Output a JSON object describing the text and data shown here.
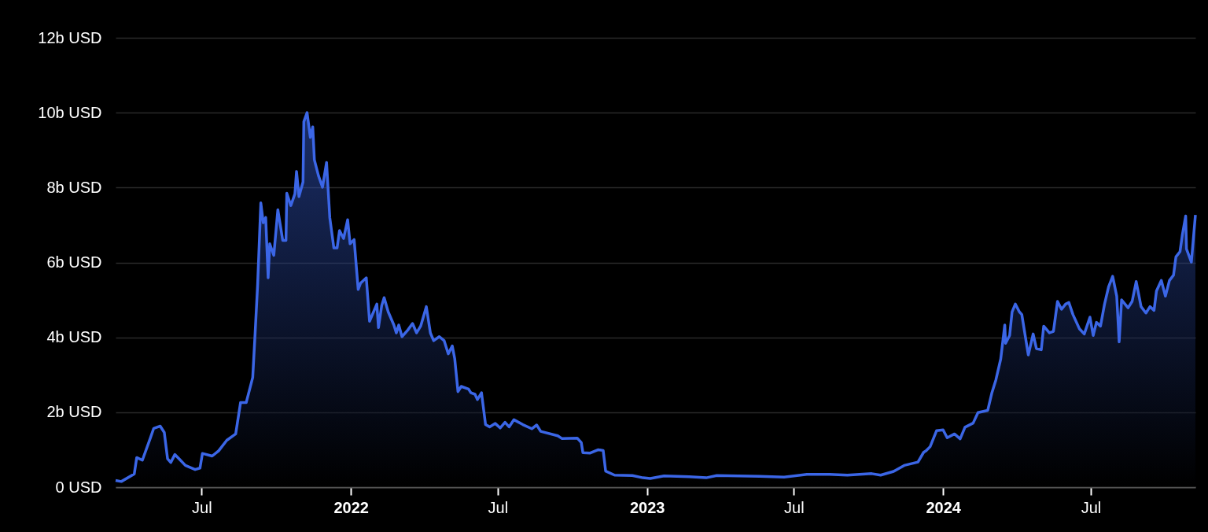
{
  "chart_data": {
    "type": "area",
    "x": [
      "2021-03-17",
      "2021-03-24",
      "2021-04-09",
      "2021-04-12",
      "2021-04-19",
      "2021-04-29",
      "2021-05-03",
      "2021-05-11",
      "2021-05-16",
      "2021-05-20",
      "2021-05-24",
      "2021-05-29",
      "2021-06-03",
      "2021-06-11",
      "2021-06-23",
      "2021-06-29",
      "2021-07-02",
      "2021-07-14",
      "2021-07-22",
      "2021-08-01",
      "2021-08-12",
      "2021-08-18",
      "2021-08-25",
      "2021-09-02",
      "2021-09-05",
      "2021-09-08",
      "2021-09-12",
      "2021-09-15",
      "2021-09-18",
      "2021-09-21",
      "2021-09-23",
      "2021-09-28",
      "2021-10-03",
      "2021-10-09",
      "2021-10-13",
      "2021-10-14",
      "2021-10-19",
      "2021-10-24",
      "2021-10-26",
      "2021-10-29",
      "2021-11-03",
      "2021-11-04",
      "2021-11-08",
      "2021-11-12",
      "2021-11-15",
      "2021-11-17",
      "2021-11-22",
      "2021-11-27",
      "2021-12-02",
      "2021-12-06",
      "2021-12-11",
      "2021-12-15",
      "2021-12-18",
      "2021-12-23",
      "2021-12-28",
      "2021-12-31",
      "2022-01-05",
      "2022-01-10",
      "2022-01-13",
      "2022-01-20",
      "2022-01-24",
      "2022-02-02",
      "2022-02-04",
      "2022-02-08",
      "2022-02-11",
      "2022-02-16",
      "2022-02-23",
      "2022-02-26",
      "2022-03-01",
      "2022-03-05",
      "2022-03-12",
      "2022-03-18",
      "2022-03-23",
      "2022-03-28",
      "2022-04-04",
      "2022-04-09",
      "2022-04-13",
      "2022-04-20",
      "2022-04-26",
      "2022-05-01",
      "2022-05-06",
      "2022-05-09",
      "2022-05-13",
      "2022-05-17",
      "2022-05-26",
      "2022-05-29",
      "2022-06-03",
      "2022-06-06",
      "2022-06-11",
      "2022-06-16",
      "2022-06-21",
      "2022-06-28",
      "2022-07-04",
      "2022-07-10",
      "2022-07-15",
      "2022-07-21",
      "2022-08-01",
      "2022-08-12",
      "2022-08-18",
      "2022-08-23",
      "2022-09-13",
      "2022-09-18",
      "2022-10-07",
      "2022-10-12",
      "2022-10-14",
      "2022-10-23",
      "2022-11-02",
      "2022-11-08",
      "2022-11-11",
      "2022-11-22",
      "2022-12-14",
      "2022-12-27",
      "2023-01-05",
      "2023-01-22",
      "2023-02-22",
      "2023-03-15",
      "2023-03-28",
      "2023-05-20",
      "2023-06-19",
      "2023-07-17",
      "2023-08-14",
      "2023-09-05",
      "2023-10-05",
      "2023-10-16",
      "2023-11-01",
      "2023-11-14",
      "2023-12-01",
      "2023-12-08",
      "2023-12-11",
      "2023-12-16",
      "2023-12-24",
      "2024-01-01",
      "2024-01-06",
      "2024-01-15",
      "2024-01-22",
      "2024-01-28",
      "2024-02-07",
      "2024-02-13",
      "2024-02-25",
      "2024-03-01",
      "2024-03-06",
      "2024-03-12",
      "2024-03-17",
      "2024-03-18",
      "2024-03-23",
      "2024-03-26",
      "2024-03-30",
      "2024-04-04",
      "2024-04-07",
      "2024-04-15",
      "2024-04-21",
      "2024-04-25",
      "2024-05-01",
      "2024-05-04",
      "2024-05-11",
      "2024-05-16",
      "2024-05-21",
      "2024-05-26",
      "2024-05-31",
      "2024-06-04",
      "2024-06-09",
      "2024-06-17",
      "2024-06-23",
      "2024-06-30",
      "2024-07-04",
      "2024-07-08",
      "2024-07-13",
      "2024-07-18",
      "2024-07-23",
      "2024-07-28",
      "2024-08-02",
      "2024-08-05",
      "2024-08-08",
      "2024-08-16",
      "2024-08-21",
      "2024-08-26",
      "2024-09-01",
      "2024-09-07",
      "2024-09-12",
      "2024-09-17",
      "2024-09-20",
      "2024-09-26",
      "2024-10-01",
      "2024-10-06",
      "2024-10-11",
      "2024-10-14",
      "2024-10-19",
      "2024-10-22",
      "2024-10-26",
      "2024-10-27",
      "2024-11-02",
      "2024-11-07"
    ],
    "series": [
      {
        "color": "#3b66e6",
        "values": [
          0.18,
          0.15,
          0.35,
          0.79,
          0.72,
          1.32,
          1.57,
          1.63,
          1.46,
          0.76,
          0.66,
          0.87,
          0.76,
          0.58,
          0.47,
          0.51,
          0.9,
          0.83,
          0.97,
          1.25,
          1.42,
          2.26,
          2.26,
          2.93,
          4.12,
          5.38,
          7.59,
          7.06,
          7.2,
          5.59,
          6.5,
          6.19,
          7.41,
          6.59,
          6.59,
          7.85,
          7.52,
          7.83,
          8.43,
          7.76,
          8.15,
          9.76,
          10.0,
          9.34,
          9.62,
          8.74,
          8.32,
          8.01,
          8.67,
          7.2,
          6.39,
          6.39,
          6.85,
          6.64,
          7.14,
          6.5,
          6.61,
          5.28,
          5.45,
          5.59,
          4.43,
          4.89,
          4.26,
          4.85,
          5.06,
          4.68,
          4.33,
          4.12,
          4.33,
          4.02,
          4.19,
          4.37,
          4.12,
          4.3,
          4.82,
          4.12,
          3.91,
          4.02,
          3.91,
          3.56,
          3.77,
          3.43,
          2.55,
          2.69,
          2.62,
          2.52,
          2.48,
          2.34,
          2.52,
          1.67,
          1.61,
          1.7,
          1.58,
          1.73,
          1.61,
          1.8,
          1.67,
          1.56,
          1.66,
          1.49,
          1.37,
          1.3,
          1.31,
          1.19,
          0.92,
          0.91,
          1.0,
          0.98,
          0.43,
          0.32,
          0.31,
          0.25,
          0.23,
          0.3,
          0.28,
          0.25,
          0.31,
          0.29,
          0.27,
          0.34,
          0.34,
          0.32,
          0.36,
          0.32,
          0.42,
          0.58,
          0.67,
          0.93,
          0.97,
          1.08,
          1.51,
          1.53,
          1.32,
          1.42,
          1.29,
          1.6,
          1.71,
          1.99,
          2.05,
          2.51,
          2.86,
          3.42,
          4.33,
          3.84,
          4.05,
          4.68,
          4.89,
          4.68,
          4.61,
          3.53,
          4.09,
          3.7,
          3.67,
          4.3,
          4.12,
          4.16,
          4.96,
          4.75,
          4.89,
          4.93,
          4.61,
          4.23,
          4.09,
          4.54,
          4.05,
          4.4,
          4.3,
          4.89,
          5.35,
          5.63,
          5.1,
          3.88,
          5.0,
          4.79,
          4.96,
          5.49,
          4.82,
          4.65,
          4.82,
          4.72,
          5.24,
          5.52,
          5.1,
          5.52,
          5.66,
          6.15,
          6.29,
          6.75,
          7.24,
          6.36,
          6.01,
          7.27
        ]
      }
    ],
    "xlim": [
      "2021-03-17",
      "2024-11-07"
    ],
    "xticks": [
      {
        "value": "2021-07-01",
        "label": "Jul"
      },
      {
        "value": "2022-01-01",
        "label": "2022"
      },
      {
        "value": "2022-07-01",
        "label": "Jul"
      },
      {
        "value": "2023-01-01",
        "label": "2023"
      },
      {
        "value": "2023-07-01",
        "label": "Jul"
      },
      {
        "value": "2024-01-01",
        "label": "2024"
      },
      {
        "value": "2024-07-01",
        "label": "Jul"
      }
    ],
    "ylim": [
      0,
      12
    ],
    "yticks": [
      {
        "value": 0,
        "label": "0 USD"
      },
      {
        "value": 2,
        "label": "2b USD"
      },
      {
        "value": 4,
        "label": "4b USD"
      },
      {
        "value": 6,
        "label": "6b USD"
      },
      {
        "value": 8,
        "label": "8b USD"
      },
      {
        "value": 10,
        "label": "10b USD"
      },
      {
        "value": 12,
        "label": "12b USD"
      }
    ],
    "grid": "y"
  }
}
